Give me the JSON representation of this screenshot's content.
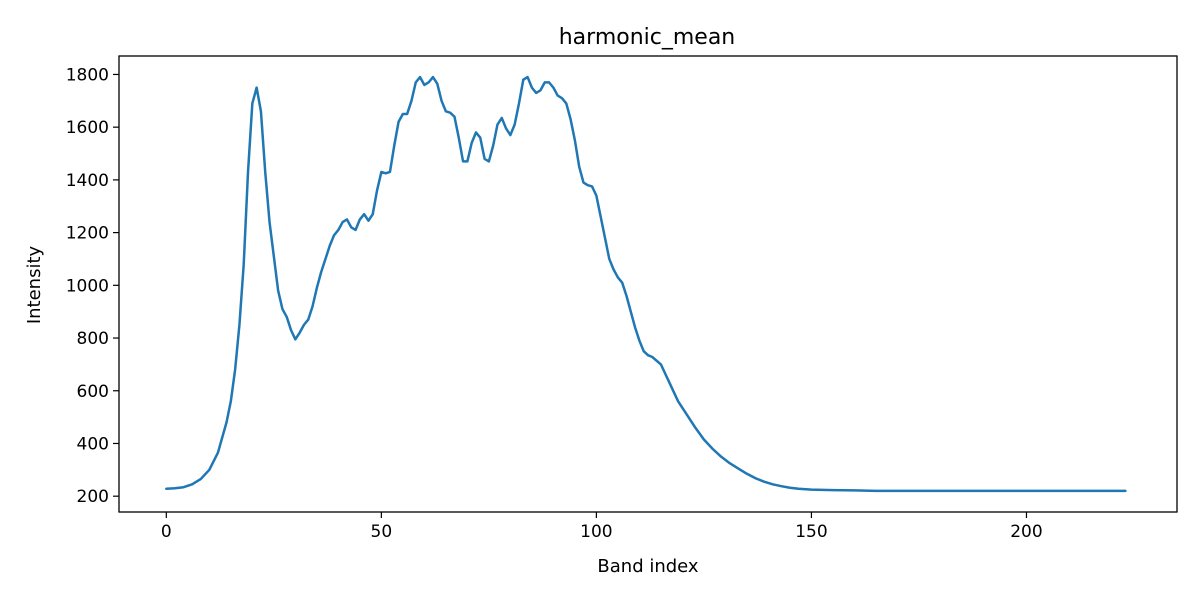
{
  "chart_data": {
    "type": "line",
    "title": "harmonic_mean",
    "xlabel": "Band index",
    "ylabel": "Intensity",
    "xlim": [
      -11,
      235
    ],
    "ylim": [
      140,
      1870
    ],
    "xticks": [
      0,
      50,
      100,
      150,
      200
    ],
    "yticks": [
      200,
      400,
      600,
      800,
      1000,
      1200,
      1400,
      1600,
      1800
    ],
    "grid": false,
    "legend": "none",
    "series": [
      {
        "color": "#1f77b4",
        "x": [
          0,
          2,
          4,
          6,
          8,
          10,
          12,
          14,
          15,
          16,
          17,
          18,
          19,
          20,
          21,
          22,
          23,
          24,
          25,
          26,
          27,
          28,
          29,
          30,
          31,
          32,
          33,
          34,
          35,
          36,
          37,
          38,
          39,
          40,
          41,
          42,
          43,
          44,
          45,
          46,
          47,
          48,
          49,
          50,
          51,
          52,
          53,
          54,
          55,
          56,
          57,
          58,
          59,
          60,
          61,
          62,
          63,
          64,
          65,
          66,
          67,
          68,
          69,
          70,
          71,
          72,
          73,
          74,
          75,
          76,
          77,
          78,
          79,
          80,
          81,
          82,
          83,
          84,
          85,
          86,
          87,
          88,
          89,
          90,
          91,
          92,
          93,
          94,
          95,
          96,
          97,
          98,
          99,
          100,
          101,
          102,
          103,
          104,
          105,
          106,
          107,
          108,
          109,
          110,
          111,
          112,
          113,
          115,
          117,
          119,
          121,
          123,
          125,
          127,
          129,
          131,
          133,
          135,
          137,
          139,
          141,
          143,
          145,
          147,
          150,
          155,
          160,
          165,
          170,
          180,
          190,
          200,
          210,
          223
        ],
        "y": [
          228,
          230,
          234,
          245,
          265,
          300,
          365,
          480,
          560,
          680,
          850,
          1080,
          1430,
          1690,
          1750,
          1660,
          1430,
          1240,
          1110,
          980,
          910,
          880,
          830,
          795,
          820,
          850,
          870,
          920,
          990,
          1050,
          1100,
          1150,
          1190,
          1210,
          1240,
          1250,
          1220,
          1210,
          1250,
          1270,
          1245,
          1270,
          1360,
          1430,
          1425,
          1430,
          1530,
          1620,
          1650,
          1650,
          1700,
          1770,
          1790,
          1760,
          1770,
          1790,
          1765,
          1700,
          1660,
          1655,
          1640,
          1560,
          1470,
          1470,
          1540,
          1580,
          1560,
          1480,
          1470,
          1530,
          1610,
          1635,
          1595,
          1570,
          1610,
          1690,
          1780,
          1790,
          1750,
          1730,
          1740,
          1770,
          1770,
          1750,
          1720,
          1710,
          1690,
          1630,
          1550,
          1450,
          1390,
          1380,
          1375,
          1340,
          1260,
          1180,
          1100,
          1060,
          1030,
          1010,
          960,
          900,
          840,
          790,
          750,
          735,
          728,
          700,
          630,
          560,
          510,
          460,
          415,
          380,
          350,
          325,
          305,
          285,
          268,
          255,
          245,
          238,
          232,
          228,
          225,
          223,
          222,
          220,
          220,
          220,
          220,
          220,
          220,
          220
        ]
      }
    ]
  }
}
